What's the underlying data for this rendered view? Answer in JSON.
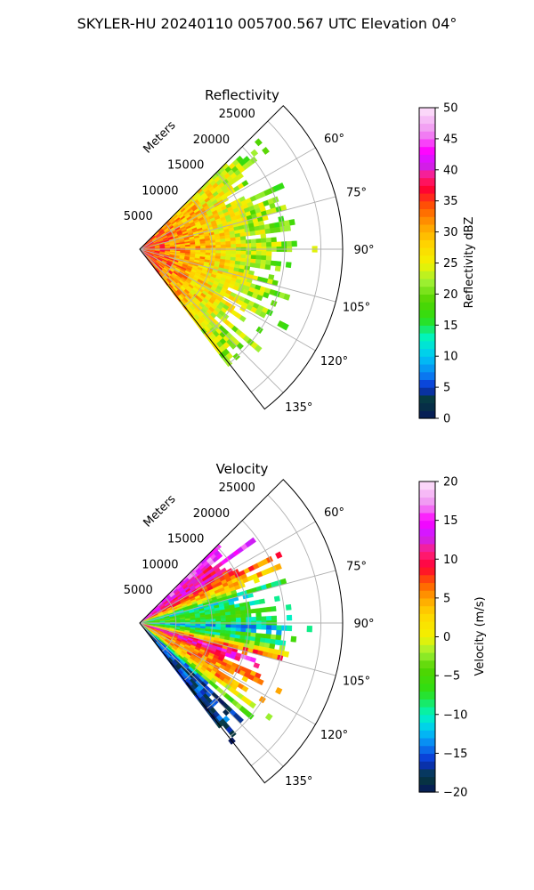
{
  "figure": {
    "suptitle": "SKYLER-HU  20240110  005700.567 UTC Elevation 04°"
  },
  "chart_data": [
    {
      "type": "heatmap",
      "subtype": "polar-sector-radar-ppi",
      "title": "Reflectivity",
      "radial_label": "Meters",
      "radial_ticks": [
        "5000",
        "10000",
        "15000",
        "20000",
        "25000"
      ],
      "radial_tick_values": [
        5000,
        10000,
        15000,
        20000,
        25000
      ],
      "r_max": 28000,
      "azimuth_range_deg": [
        45,
        142
      ],
      "azimuth_ticks": [
        "60°",
        "75°",
        "90°",
        "105°",
        "120°",
        "135°"
      ],
      "azimuth_tick_values": [
        60,
        75,
        90,
        105,
        120,
        135
      ],
      "grid": true,
      "colorbar": {
        "label": "Reflectivity dBZ",
        "range": [
          0,
          50
        ],
        "ticks": [
          "0",
          "5",
          "10",
          "15",
          "20",
          "25",
          "30",
          "35",
          "40",
          "45",
          "50"
        ],
        "tick_values": [
          0,
          5,
          10,
          15,
          20,
          25,
          30,
          35,
          40,
          45,
          50
        ],
        "stops": [
          [
            0,
            "#06175c"
          ],
          [
            3,
            "#063b3b"
          ],
          [
            5,
            "#0a2ecf"
          ],
          [
            7,
            "#0a7cf2"
          ],
          [
            10,
            "#00c8f5"
          ],
          [
            13,
            "#00f5c0"
          ],
          [
            16,
            "#2ddf14"
          ],
          [
            19,
            "#52d400"
          ],
          [
            22,
            "#9ef032"
          ],
          [
            25,
            "#f2f200"
          ],
          [
            28,
            "#ffd500"
          ],
          [
            31,
            "#ffa200"
          ],
          [
            34,
            "#ff5a00"
          ],
          [
            37,
            "#ff0033"
          ],
          [
            39,
            "#ff2080"
          ],
          [
            41,
            "#c81eff"
          ],
          [
            43,
            "#ff00ff"
          ],
          [
            46,
            "#ef8ef1"
          ],
          [
            50,
            "#fde4fb"
          ]
        ]
      },
      "field": {
        "near_value": 36,
        "far_value": 20,
        "decay_range_m": 20000,
        "echo_edge_mean_m": 17500,
        "echo_edge_spread_m": 9000
      }
    },
    {
      "type": "heatmap",
      "subtype": "polar-sector-radar-ppi",
      "title": "Velocity",
      "radial_label": "Meters",
      "radial_ticks": [
        "5000",
        "10000",
        "15000",
        "20000",
        "25000"
      ],
      "radial_tick_values": [
        5000,
        10000,
        15000,
        20000,
        25000
      ],
      "r_max": 28000,
      "azimuth_range_deg": [
        45,
        142
      ],
      "azimuth_ticks": [
        "60°",
        "75°",
        "90°",
        "105°",
        "120°",
        "135°"
      ],
      "azimuth_tick_values": [
        60,
        75,
        90,
        105,
        120,
        135
      ],
      "grid": true,
      "colorbar": {
        "label": "Velocity (m/s)",
        "range": [
          -20,
          20
        ],
        "ticks": [
          "−20",
          "−15",
          "−10",
          "−5",
          "0",
          "5",
          "10",
          "15",
          "20"
        ],
        "tick_values": [
          -20,
          -15,
          -10,
          -5,
          0,
          5,
          10,
          15,
          20
        ],
        "stops": [
          [
            -20,
            "#06175c"
          ],
          [
            -18,
            "#063b3b"
          ],
          [
            -16,
            "#0a2ecf"
          ],
          [
            -14,
            "#0a7cf2"
          ],
          [
            -12,
            "#00c8f5"
          ],
          [
            -10,
            "#00f5c0"
          ],
          [
            -7,
            "#2ddf14"
          ],
          [
            -4,
            "#52d400"
          ],
          [
            -2,
            "#9ef032"
          ],
          [
            0,
            "#f2f200"
          ],
          [
            3,
            "#ffd500"
          ],
          [
            5,
            "#ffa200"
          ],
          [
            7,
            "#ff5a00"
          ],
          [
            9,
            "#ff0033"
          ],
          [
            11,
            "#ff2080"
          ],
          [
            13,
            "#c81eff"
          ],
          [
            15,
            "#ff00ff"
          ],
          [
            17,
            "#ef8ef1"
          ],
          [
            20,
            "#fde4fb"
          ]
        ]
      },
      "field": {
        "sector_values": [
          [
            45,
            15
          ],
          [
            58,
            12
          ],
          [
            66,
            5
          ],
          [
            76,
            -10
          ],
          [
            84,
            -4
          ],
          [
            92,
            -12
          ],
          [
            100,
            -4
          ],
          [
            108,
            12
          ],
          [
            118,
            6
          ],
          [
            126,
            3
          ],
          [
            134,
            -15
          ],
          [
            142,
            -18
          ]
        ],
        "echo_edge_mean_m": 16500,
        "echo_edge_spread_m": 9000
      }
    }
  ]
}
